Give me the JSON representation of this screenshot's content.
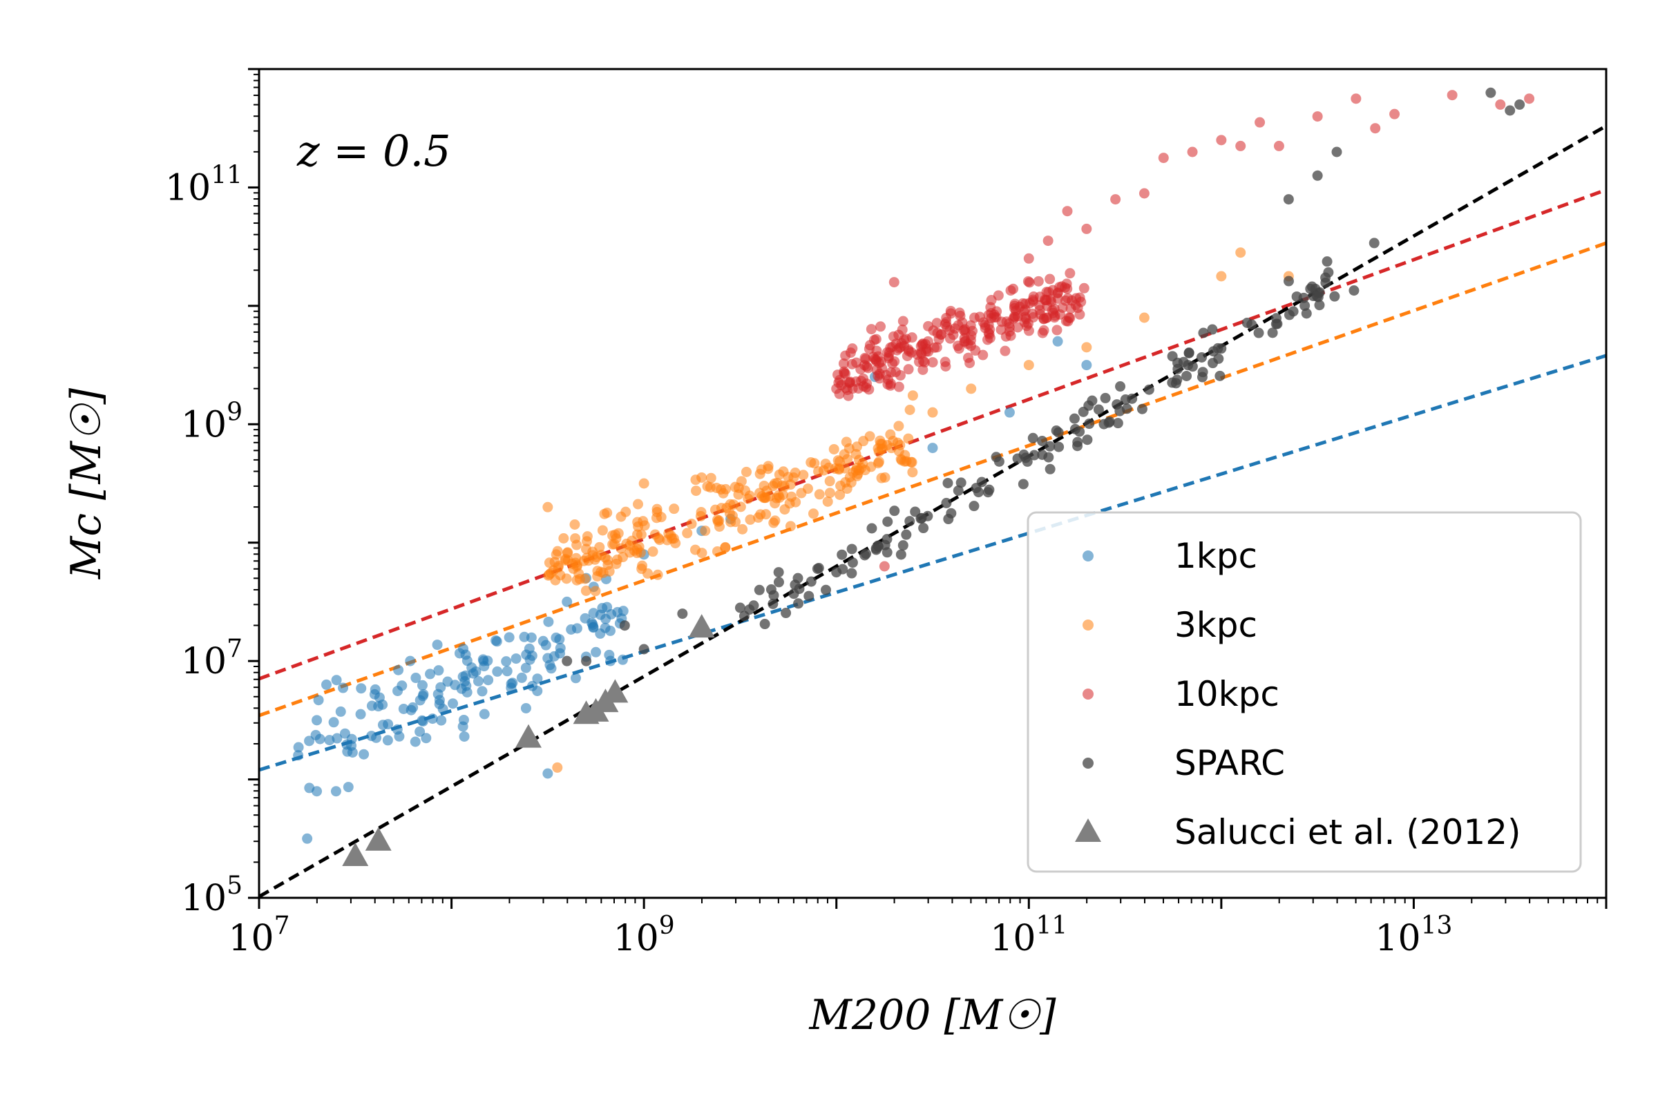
{
  "chart_data": {
    "type": "scatter",
    "title": "",
    "annotation": "z = 0.5",
    "xlabel": "M200 [M☉]",
    "ylabel": "Mc [M☉]",
    "xscale": "log",
    "yscale": "log",
    "xlim_log10": [
      7,
      14
    ],
    "ylim_log10": [
      5,
      12
    ],
    "x_ticks": [
      {
        "exp": 7,
        "label": "10^7"
      },
      {
        "exp": 9,
        "label": "10^9"
      },
      {
        "exp": 11,
        "label": "10^11"
      },
      {
        "exp": 13,
        "label": "10^13"
      }
    ],
    "y_ticks": [
      {
        "exp": 5,
        "label": "10^5"
      },
      {
        "exp": 7,
        "label": "10^7"
      },
      {
        "exp": 9,
        "label": "10^9"
      },
      {
        "exp": 11,
        "label": "10^11"
      }
    ],
    "legend_position": "bottom-right",
    "series": [
      {
        "name": "1kpc",
        "color": "#1f77b4",
        "marker": "circle",
        "fit": {
          "slope": 0.5,
          "intercept_log10": 2.58
        },
        "scatter_model": {
          "x_range_log10": [
            7.2,
            8.9
          ],
          "slope": 0.62,
          "intercept_log10": 1.8,
          "spread": 0.18,
          "n": 150,
          "seed": 11
        },
        "points": [
          [
            7.25,
            5.5
          ],
          [
            7.3,
            5.9
          ],
          [
            7.4,
            5.9
          ],
          [
            8.5,
            6.05
          ],
          [
            7.3,
            6.5
          ],
          [
            7.35,
            6.8
          ],
          [
            8.6,
            7.5
          ],
          [
            8.7,
            7.7
          ],
          [
            9.0,
            7.9
          ],
          [
            9.3,
            8.1
          ],
          [
            9.45,
            8.2
          ],
          [
            10.2,
            9.4
          ],
          [
            11.15,
            9.7
          ],
          [
            11.3,
            9.5
          ],
          [
            10.9,
            9.1
          ],
          [
            10.5,
            8.8
          ],
          [
            8.3,
            7.2
          ]
        ]
      },
      {
        "name": "3kpc",
        "color": "#ff7f0e",
        "marker": "circle",
        "fit": {
          "slope": 0.57,
          "intercept_log10": 2.55
        },
        "scatter_model": {
          "x_range_log10": [
            8.5,
            10.4
          ],
          "slope": 0.56,
          "intercept_log10": 3.0,
          "spread": 0.14,
          "n": 260,
          "seed": 23
        },
        "points": [
          [
            8.5,
            8.3
          ],
          [
            8.55,
            6.1
          ],
          [
            9.0,
            8.5
          ],
          [
            9.4,
            8.45
          ],
          [
            9.7,
            8.4
          ],
          [
            10.5,
            9.1
          ],
          [
            10.7,
            9.3
          ],
          [
            11.0,
            9.5
          ],
          [
            11.3,
            9.65
          ],
          [
            11.6,
            9.9
          ],
          [
            12.0,
            10.25
          ],
          [
            12.1,
            10.45
          ],
          [
            12.35,
            10.25
          ]
        ]
      },
      {
        "name": "10kpc",
        "color": "#d62728",
        "marker": "circle",
        "fit": {
          "slope": 0.59,
          "intercept_log10": 2.72
        },
        "scatter_model": {
          "x_range_log10": [
            10.0,
            11.3
          ],
          "slope": 0.55,
          "intercept_log10": 3.9,
          "spread": 0.12,
          "n": 260,
          "seed": 37
        },
        "points": [
          [
            10.25,
            7.8
          ],
          [
            10.3,
            10.2
          ],
          [
            10.2,
            9.55
          ],
          [
            10.0,
            9.3
          ],
          [
            11.0,
            10.4
          ],
          [
            11.1,
            10.55
          ],
          [
            11.2,
            10.8
          ],
          [
            11.3,
            10.65
          ],
          [
            11.45,
            10.9
          ],
          [
            11.6,
            10.95
          ],
          [
            11.7,
            11.25
          ],
          [
            11.85,
            11.3
          ],
          [
            12.0,
            11.4
          ],
          [
            12.1,
            11.35
          ],
          [
            12.2,
            11.55
          ],
          [
            12.3,
            11.35
          ],
          [
            12.5,
            11.6
          ],
          [
            12.7,
            11.75
          ],
          [
            12.8,
            11.5
          ],
          [
            12.9,
            11.62
          ],
          [
            13.2,
            11.78
          ],
          [
            13.45,
            11.7
          ],
          [
            13.6,
            11.75
          ]
        ]
      },
      {
        "name": "SPARC",
        "color": "#444444",
        "marker": "circle",
        "fit": {
          "slope": 0.93,
          "intercept_log10": -1.5
        },
        "scatter_model": {
          "x_range_log10": [
            9.5,
            12.8
          ],
          "slope": 0.93,
          "intercept_log10": -1.5,
          "spread": 0.1,
          "n": 150,
          "seed": 53
        },
        "points": [
          [
            8.9,
            7.3
          ],
          [
            9.0,
            7.1
          ],
          [
            9.2,
            7.4
          ],
          [
            9.5,
            7.45
          ],
          [
            9.6,
            7.6
          ],
          [
            9.7,
            7.75
          ],
          [
            9.8,
            7.7
          ],
          [
            10.0,
            7.75
          ],
          [
            8.7,
            7.0
          ],
          [
            8.6,
            7.0
          ],
          [
            13.4,
            11.8
          ],
          [
            13.5,
            11.65
          ],
          [
            13.55,
            11.7
          ],
          [
            12.6,
            11.3
          ],
          [
            12.5,
            11.1
          ],
          [
            12.35,
            10.9
          ]
        ]
      },
      {
        "name": "Salucci et al. (2012)",
        "color": "#808080",
        "marker": "triangle",
        "points": [
          [
            7.5,
            5.35
          ],
          [
            7.62,
            5.48
          ],
          [
            8.4,
            6.35
          ],
          [
            8.7,
            6.55
          ],
          [
            8.75,
            6.57
          ],
          [
            8.8,
            6.65
          ],
          [
            8.85,
            6.73
          ],
          [
            9.3,
            7.28
          ]
        ]
      }
    ]
  }
}
